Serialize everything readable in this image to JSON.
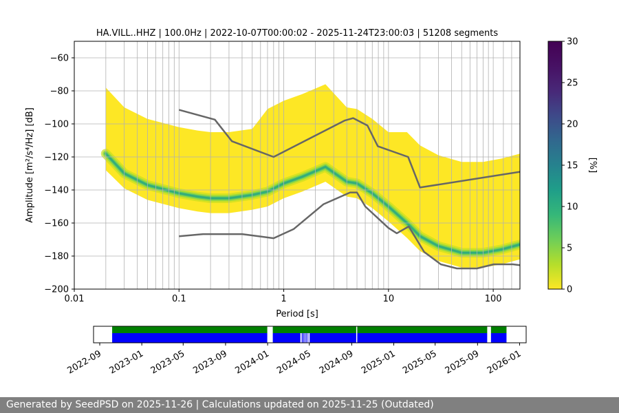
{
  "chart_data": [
    {
      "type": "heatmap",
      "title": "HA.VILL..HHZ | 100.0Hz | 2022-10-07T00:00:02 - 2025-11-24T23:00:03 | 51208 segments",
      "xlabel": "Period [s]",
      "ylabel": "Amplitude [m²/s⁴/Hz] [dB]",
      "xscale": "log",
      "xlim": [
        0.01,
        180
      ],
      "ylim": [
        -200,
        -50
      ],
      "x_ticks": [
        0.01,
        0.1,
        1,
        10,
        100
      ],
      "x_tick_labels": [
        "0.01",
        "0.1",
        "1",
        "10",
        "100"
      ],
      "y_ticks": [
        -200,
        -180,
        -160,
        -140,
        -120,
        -100,
        -80,
        -60
      ],
      "y_tick_labels": [
        "−200",
        "−180",
        "−160",
        "−140",
        "−120",
        "−100",
        "−80",
        "−60"
      ],
      "grid": true,
      "colorbar": {
        "label": "[%]",
        "range": [
          0,
          30
        ],
        "ticks": [
          0,
          5,
          10,
          15,
          20,
          25,
          30
        ],
        "colormap": "viridis_r"
      },
      "psd_mode_curve": {
        "period": [
          0.02,
          0.03,
          0.05,
          0.1,
          0.15,
          0.2,
          0.3,
          0.5,
          0.7,
          1.0,
          1.5,
          2.5,
          4.0,
          5.0,
          7.0,
          10,
          15,
          20,
          30,
          50,
          80,
          120,
          180
        ],
        "amplitude": [
          -118,
          -130,
          -137,
          -142,
          -144,
          -145,
          -145,
          -143,
          -141,
          -136,
          -132,
          -126,
          -135,
          -136,
          -142,
          -150,
          -160,
          -168,
          -174,
          -178,
          -178,
          -176,
          -173
        ]
      },
      "noise_models": {
        "high": {
          "color": "#666666",
          "period": [
            0.1,
            0.22,
            0.32,
            0.8,
            3.8,
            4.6,
            6.3,
            7.9,
            15.4,
            20,
            180
          ],
          "amplitude": [
            -91.5,
            -97.4,
            -110.5,
            -120.0,
            -98.0,
            -96.5,
            -101.0,
            -113.5,
            -120.0,
            -138.5,
            -129.0
          ]
        },
        "low": {
          "color": "#666666",
          "period": [
            0.1,
            0.17,
            0.4,
            0.8,
            1.24,
            2.4,
            4.3,
            5.0,
            6.0,
            10,
            12,
            15.6,
            21.9,
            31.6,
            45,
            70,
            101,
            154,
            180
          ],
          "amplitude": [
            -168.0,
            -166.7,
            -166.7,
            -169.2,
            -163.7,
            -148.6,
            -141.5,
            -141.5,
            -150.0,
            -163.0,
            -166.2,
            -162.1,
            -177.5,
            -185.0,
            -187.5,
            -187.5,
            -185.0,
            -185.0,
            -185.5
          ]
        }
      },
      "period_grid_lines": [
        0.02,
        0.03,
        0.04,
        0.05,
        0.06,
        0.07,
        0.08,
        0.09,
        0.1,
        0.2,
        0.3,
        0.4,
        0.5,
        0.6,
        0.7,
        0.8,
        0.9,
        1,
        2,
        3,
        4,
        5,
        6,
        7,
        8,
        9,
        10,
        20,
        30,
        40,
        50,
        60,
        70,
        80,
        90,
        100,
        125,
        150
      ]
    },
    {
      "type": "timeline",
      "x_tick_labels": [
        "2022-09",
        "2023-01",
        "2023-05",
        "2023-09",
        "2024-01",
        "2024-05",
        "2024-09",
        "2025-01",
        "2025-05",
        "2025-09",
        "2026-01"
      ],
      "xlim": [
        "2022-08-14",
        "2026-01-20"
      ],
      "data_availability": {
        "color": "#0000ff",
        "intervals": [
          [
            "2022-10-07",
            "2023-12-31"
          ],
          [
            "2024-01-16",
            "2024-04-05"
          ],
          [
            "2024-04-09",
            "2024-04-12"
          ],
          [
            "2024-04-14",
            "2024-04-17"
          ],
          [
            "2024-04-20",
            "2024-04-23"
          ],
          [
            "2024-04-26",
            "2024-04-28"
          ],
          [
            "2024-05-02",
            "2024-09-14"
          ],
          [
            "2024-09-17",
            "2025-09-29"
          ],
          [
            "2025-10-10",
            "2025-11-24"
          ]
        ]
      },
      "psd_availability": {
        "color": "#008000",
        "intervals": [
          [
            "2022-10-07",
            "2023-12-31"
          ],
          [
            "2024-01-16",
            "2024-09-14"
          ],
          [
            "2024-09-17",
            "2025-09-29"
          ],
          [
            "2025-10-10",
            "2025-11-24"
          ]
        ]
      }
    }
  ],
  "footer": {
    "text": "Generated by SeedPSD on 2025-11-26 | Calculations updated on 2025-11-25 (Outdated)"
  }
}
